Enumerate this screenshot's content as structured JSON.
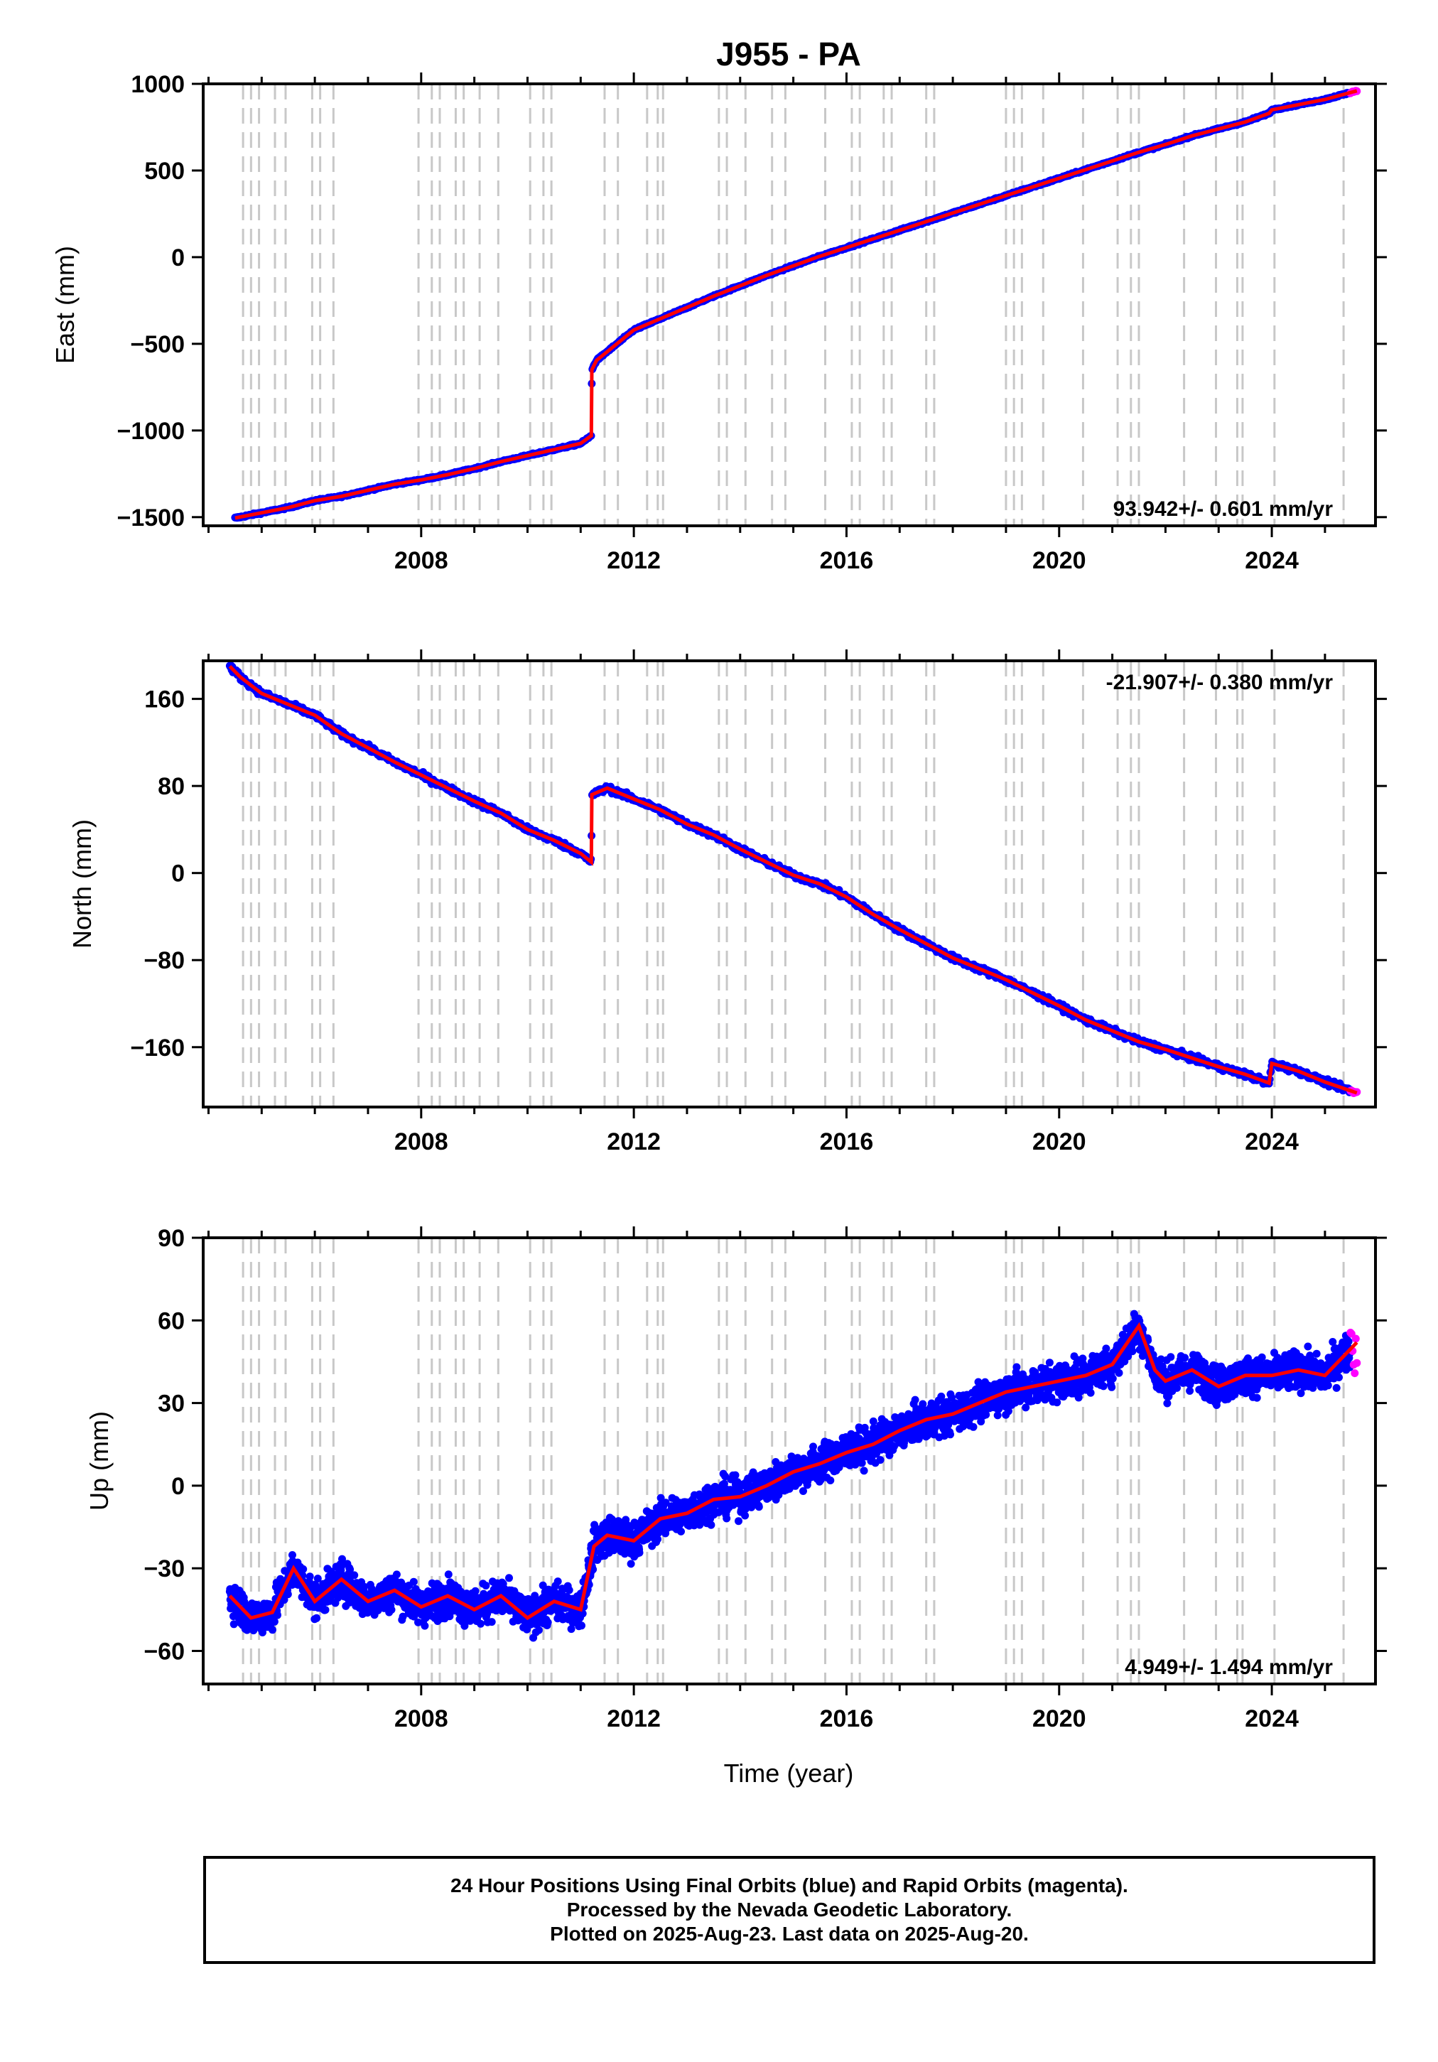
{
  "title": "J955 - PA",
  "xlabel": "Time (year)",
  "footer": {
    "line1": "24 Hour Positions Using Final Orbits (blue) and Rapid Orbits (magenta).",
    "line2": "Processed by the Nevada Geodetic Laboratory.",
    "line3": "Plotted on 2025-Aug-23. Last data on 2025-Aug-20."
  },
  "colors": {
    "final_orbits": "#0000ff",
    "rapid_orbits": "#ff00ff",
    "model": "#ff0000",
    "event_lines": "#c8c8c8"
  },
  "chart_data": [
    {
      "type": "scatter",
      "panel": "east",
      "ylabel": "East (mm)",
      "rate_text": "93.942+/- 0.601 mm/yr",
      "rate_placement": "bottom-right",
      "xlim": [
        2003.9,
        2025.95
      ],
      "ylim": [
        -1550,
        1000
      ],
      "xticks": [
        2008,
        2012,
        2016,
        2020,
        2024
      ],
      "yticks": [
        -1500,
        -1000,
        -500,
        0,
        500,
        1000
      ],
      "ytick_labels": [
        "−1500",
        "−1000",
        "−500",
        "0",
        "500",
        "1000"
      ],
      "series": [
        {
          "x": [
            2004.5,
            2005.0,
            2005.5,
            2006.0,
            2006.5,
            2007.0,
            2007.5,
            2008.0,
            2008.5,
            2009.0,
            2009.5,
            2010.0,
            2010.5,
            2011.0,
            2011.2,
            2011.21,
            2011.3,
            2011.5,
            2011.8,
            2012.0,
            2012.5,
            2013.0,
            2013.5,
            2014.0,
            2014.5,
            2015.0,
            2015.5,
            2016.0,
            2016.5,
            2017.0,
            2017.5,
            2018.0,
            2018.5,
            2019.0,
            2019.5,
            2020.0,
            2020.5,
            2021.0,
            2021.5,
            2022.0,
            2022.5,
            2023.0,
            2023.5,
            2023.95,
            2024.0,
            2024.5,
            2025.0,
            2025.6
          ],
          "y": [
            -1505,
            -1475,
            -1445,
            -1405,
            -1380,
            -1345,
            -1310,
            -1285,
            -1255,
            -1220,
            -1180,
            -1145,
            -1110,
            -1075,
            -1030,
            -650,
            -595,
            -545,
            -470,
            -420,
            -355,
            -290,
            -225,
            -165,
            -105,
            -50,
            5,
            55,
            105,
            155,
            205,
            255,
            305,
            355,
            405,
            455,
            505,
            555,
            605,
            650,
            700,
            740,
            780,
            830,
            850,
            880,
            910,
            960
          ]
        }
      ]
    },
    {
      "type": "scatter",
      "panel": "north",
      "ylabel": "North (mm)",
      "rate_text": "-21.907+/- 0.380 mm/yr",
      "rate_placement": "top-right",
      "xlim": [
        2003.9,
        2025.95
      ],
      "ylim": [
        -215,
        195
      ],
      "xticks": [
        2008,
        2012,
        2016,
        2020,
        2024
      ],
      "yticks": [
        -160,
        -80,
        0,
        80,
        160
      ],
      "ytick_labels": [
        "−160",
        "−80",
        "0",
        "80",
        "160"
      ],
      "series": [
        {
          "x": [
            2004.4,
            2004.6,
            2005.0,
            2005.5,
            2006.0,
            2006.5,
            2007.0,
            2007.5,
            2008.0,
            2008.5,
            2009.0,
            2009.5,
            2010.0,
            2010.5,
            2011.0,
            2011.2,
            2011.21,
            2011.5,
            2012.0,
            2012.5,
            2013.0,
            2013.5,
            2014.0,
            2014.5,
            2015.0,
            2015.5,
            2016.0,
            2016.5,
            2017.0,
            2017.5,
            2018.0,
            2018.5,
            2019.0,
            2019.5,
            2020.0,
            2020.5,
            2021.0,
            2021.5,
            2022.0,
            2022.5,
            2023.0,
            2023.5,
            2023.95,
            2024.0,
            2024.5,
            2025.0,
            2025.6
          ],
          "y": [
            190,
            180,
            165,
            155,
            145,
            128,
            115,
            102,
            90,
            78,
            66,
            55,
            40,
            30,
            18,
            10,
            72,
            78,
            68,
            58,
            45,
            35,
            22,
            10,
            -2,
            -10,
            -22,
            -38,
            -52,
            -65,
            -78,
            -88,
            -98,
            -110,
            -122,
            -135,
            -145,
            -155,
            -162,
            -170,
            -178,
            -185,
            -193,
            -175,
            -182,
            -192,
            -202
          ]
        }
      ]
    },
    {
      "type": "scatter",
      "panel": "up",
      "ylabel": "Up (mm)",
      "rate_text": "4.949+/- 1.494 mm/yr",
      "rate_placement": "bottom-right",
      "xlim": [
        2003.9,
        2025.95
      ],
      "ylim": [
        -72,
        90
      ],
      "xticks": [
        2008,
        2012,
        2016,
        2020,
        2024
      ],
      "yticks": [
        -60,
        -30,
        0,
        30,
        60,
        90
      ],
      "ytick_labels": [
        "−60",
        "−30",
        "0",
        "30",
        "60",
        "90"
      ],
      "series": [
        {
          "x": [
            2004.4,
            2004.8,
            2005.2,
            2005.6,
            2006.0,
            2006.5,
            2007.0,
            2007.5,
            2008.0,
            2008.5,
            2009.0,
            2009.5,
            2010.0,
            2010.5,
            2011.0,
            2011.25,
            2011.5,
            2012.0,
            2012.5,
            2013.0,
            2013.5,
            2014.0,
            2014.5,
            2015.0,
            2015.5,
            2016.0,
            2016.5,
            2017.0,
            2017.5,
            2018.0,
            2018.5,
            2019.0,
            2019.5,
            2020.0,
            2020.5,
            2021.0,
            2021.5,
            2021.8,
            2022.0,
            2022.5,
            2023.0,
            2023.5,
            2024.0,
            2024.5,
            2025.0,
            2025.6
          ],
          "y": [
            -40,
            -48,
            -46,
            -30,
            -42,
            -34,
            -42,
            -38,
            -44,
            -40,
            -45,
            -40,
            -48,
            -42,
            -45,
            -22,
            -18,
            -20,
            -12,
            -10,
            -5,
            -4,
            0,
            5,
            8,
            12,
            15,
            20,
            24,
            26,
            30,
            34,
            36,
            38,
            40,
            44,
            58,
            42,
            38,
            42,
            36,
            40,
            40,
            42,
            40,
            52
          ]
        }
      ]
    }
  ],
  "event_lines_x": [
    2004.65,
    2004.8,
    2004.95,
    2005.25,
    2005.45,
    2005.95,
    2006.1,
    2006.35,
    2007.95,
    2008.2,
    2008.35,
    2008.65,
    2008.8,
    2009.1,
    2009.45,
    2010.05,
    2010.3,
    2010.45,
    2011.45,
    2011.7,
    2012.25,
    2012.45,
    2012.55,
    2013.6,
    2013.75,
    2014.1,
    2014.6,
    2014.85,
    2015.6,
    2016.1,
    2016.25,
    2016.7,
    2016.85,
    2017.5,
    2017.65,
    2019.0,
    2019.15,
    2019.3,
    2019.7,
    2020.45,
    2021.1,
    2021.35,
    2021.5,
    2022.35,
    2022.95,
    2023.35,
    2023.45,
    2024.05,
    2025.35
  ]
}
